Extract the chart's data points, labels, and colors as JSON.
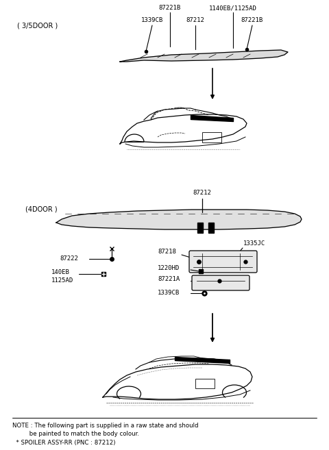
{
  "bg_color": "#ffffff",
  "fig_width": 4.8,
  "fig_height": 6.57,
  "dpi": 100,
  "note_line1": "NOTE : The following part is supplied in a raw state and should",
  "note_line2": "         be painted to match the body colour.",
  "note_line3": "  * SPOILER ASSY-RR (PNC : 87212)",
  "label_3door": "( 3/5DOOR )",
  "label_4door": "(4DOOR )",
  "line_color": "#000000",
  "text_color": "#000000"
}
